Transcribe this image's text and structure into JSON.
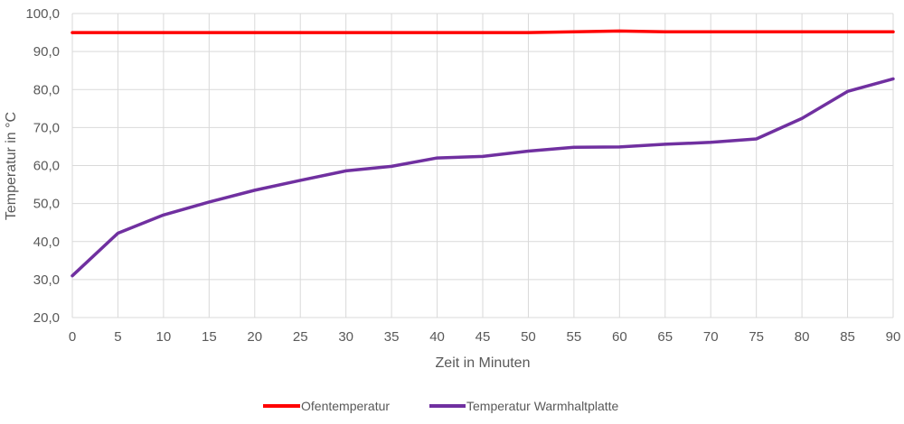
{
  "chart_data": {
    "type": "line",
    "title": "",
    "xlabel": "Zeit in Minuten",
    "ylabel": "Temperatur in °C",
    "x": [
      0,
      5,
      10,
      15,
      20,
      25,
      30,
      35,
      40,
      45,
      50,
      55,
      60,
      65,
      70,
      75,
      80,
      85,
      90
    ],
    "xlim": [
      0,
      90
    ],
    "ylim": [
      20,
      100
    ],
    "y_ticks": [
      "20,0",
      "30,0",
      "40,0",
      "50,0",
      "60,0",
      "70,0",
      "80,0",
      "90,0",
      "100,0"
    ],
    "x_ticks": [
      "0",
      "5",
      "10",
      "15",
      "20",
      "25",
      "30",
      "35",
      "40",
      "45",
      "50",
      "55",
      "60",
      "65",
      "70",
      "75",
      "80",
      "85",
      "90"
    ],
    "grid": true,
    "legend_position": "bottom",
    "series": [
      {
        "name": "Ofentemperatur",
        "color": "#ff0000",
        "values": [
          95.0,
          95.0,
          95.0,
          95.0,
          95.0,
          95.0,
          95.0,
          95.0,
          95.0,
          95.0,
          95.0,
          95.2,
          95.4,
          95.2,
          95.2,
          95.2,
          95.2,
          95.2,
          95.2
        ]
      },
      {
        "name": "Temperatur Warmhaltplatte",
        "color": "#7030a0",
        "values": [
          31.0,
          42.2,
          47.0,
          50.4,
          53.5,
          56.1,
          58.6,
          59.8,
          62.0,
          62.4,
          63.8,
          64.8,
          64.9,
          65.6,
          66.1,
          67.0,
          72.4,
          79.5,
          82.8
        ]
      }
    ]
  }
}
